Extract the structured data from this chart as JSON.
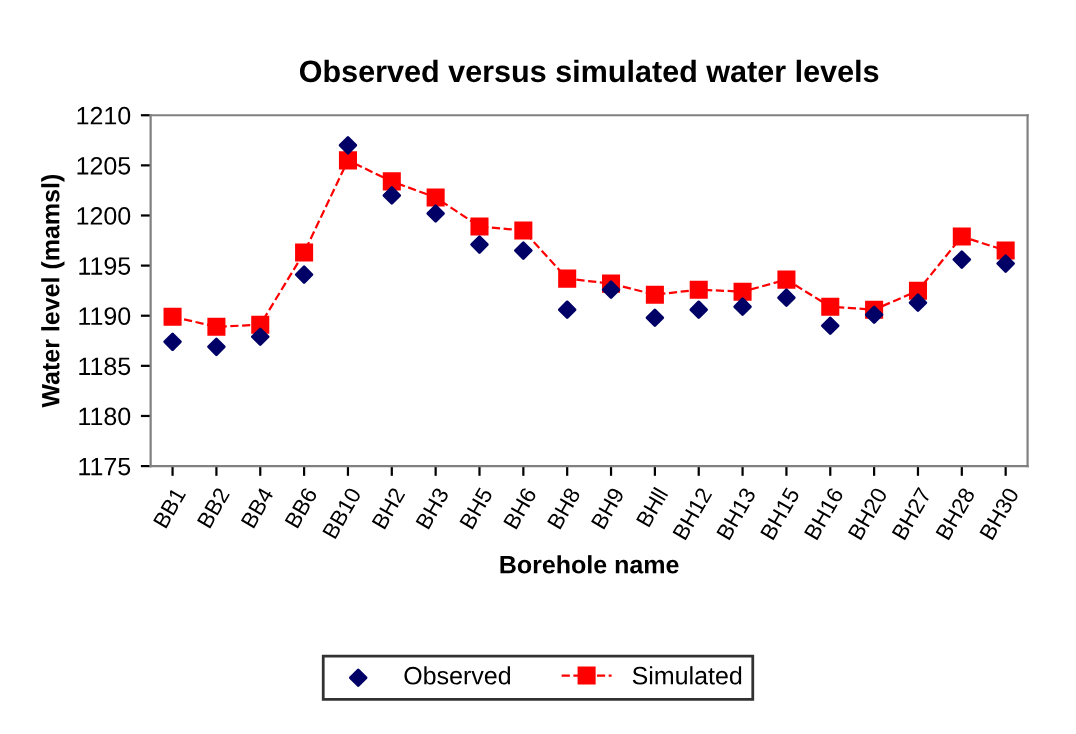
{
  "chart_data": {
    "type": "scatter",
    "title": "Observed versus simulated water levels",
    "xlabel": "Borehole name",
    "ylabel": "Water level (mamsl)",
    "categories": [
      "BB1",
      "BB2",
      "BB4",
      "BB6",
      "BB10",
      "BH2",
      "BH3",
      "BH5",
      "BH6",
      "BH8",
      "BH9",
      "BHll",
      "BH12",
      "BH13",
      "BH15",
      "BH16",
      "BH20",
      "BH27",
      "BH28",
      "BH30"
    ],
    "series": [
      {
        "name": "Observed",
        "color": "#000066",
        "marker": "diamond",
        "values": [
          1187.4,
          1186.9,
          1187.9,
          1194.1,
          1207.0,
          1202.0,
          1200.2,
          1197.1,
          1196.5,
          1190.6,
          1192.6,
          1189.8,
          1190.6,
          1190.9,
          1191.8,
          1189.0,
          1190.1,
          1191.3,
          1195.6,
          1195.2
        ]
      },
      {
        "name": "Simulated",
        "type": "line",
        "color": "#ff0000",
        "marker": "square",
        "line_style": "dashed",
        "values": [
          1189.9,
          1188.9,
          1189.1,
          1196.3,
          1205.5,
          1203.4,
          1201.8,
          1198.9,
          1198.5,
          1193.7,
          1193.2,
          1192.1,
          1192.6,
          1192.4,
          1193.6,
          1190.9,
          1190.6,
          1192.5,
          1197.9,
          1196.5
        ]
      }
    ],
    "ylim": [
      1175,
      1210
    ],
    "yticks": [
      1175,
      1180,
      1185,
      1190,
      1195,
      1200,
      1205,
      1210
    ],
    "grid": false,
    "legend": "bottom"
  }
}
